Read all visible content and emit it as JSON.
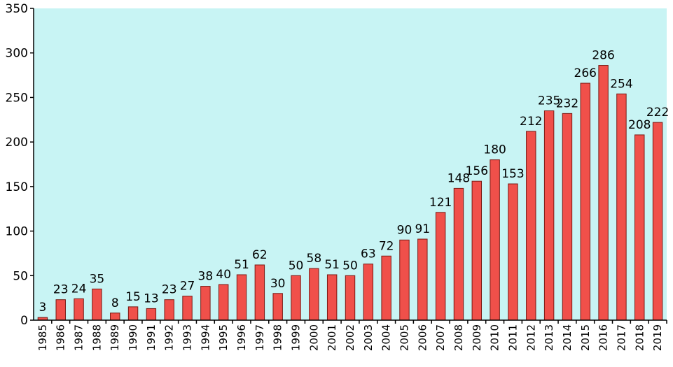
{
  "chart_data": {
    "type": "bar",
    "title": "",
    "xlabel": "",
    "ylabel": "",
    "ylim": [
      0,
      350
    ],
    "yticks": [
      0,
      50,
      100,
      150,
      200,
      250,
      300,
      350
    ],
    "grid": false,
    "legend": "none",
    "categories": [
      "1985",
      "1986",
      "1987",
      "1988",
      "1989",
      "1990",
      "1991",
      "1992",
      "1993",
      "1994",
      "1995",
      "1996",
      "1997",
      "1998",
      "1999",
      "2000",
      "2001",
      "2002",
      "2003",
      "2004",
      "2005",
      "2006",
      "2007",
      "2008",
      "2009",
      "2010",
      "2011",
      "2012",
      "2013",
      "2014",
      "2015",
      "2016",
      "2017",
      "2018",
      "2019"
    ],
    "values": [
      3,
      23,
      24,
      35,
      8,
      15,
      13,
      23,
      27,
      38,
      40,
      51,
      62,
      30,
      50,
      58,
      51,
      50,
      63,
      72,
      90,
      91,
      121,
      148,
      156,
      180,
      153,
      212,
      235,
      232,
      266,
      286,
      254,
      208,
      222
    ],
    "colors": {
      "plot_background": "#c8f4f4",
      "bar_fill": "#f0504a",
      "bar_stroke": "#7a1a14"
    }
  }
}
